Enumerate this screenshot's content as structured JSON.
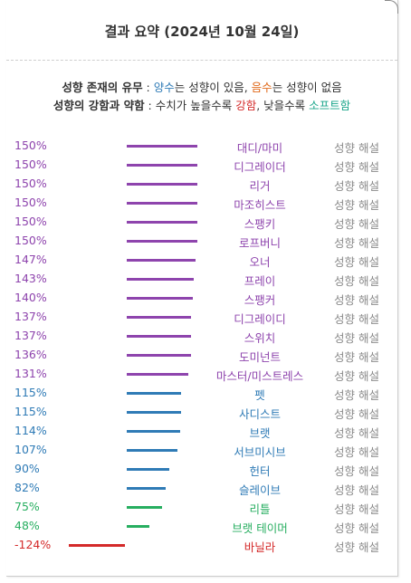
{
  "title": "결과 요약 (2024년 10월 24일)",
  "legend": {
    "line1": {
      "head": "성향 존재의 유무",
      "sep": " : ",
      "positive": "양수",
      "mid": "는 성향이 있음, ",
      "negative": "음수",
      "tail": "는 성향이 없음"
    },
    "line2": {
      "head": "성향의 강함과 약함",
      "sep": " : 수치가 높을수록 ",
      "strong": "강함",
      "mid": ", 낮을수록 ",
      "soft": "소프트함"
    }
  },
  "colors": {
    "purple": "#8e44ad",
    "blue": "#2f7bb6",
    "green": "#27ae60",
    "red": "#d42a2a",
    "orange": "#e0691a",
    "teal": "#1aa58a",
    "link": "#8a8a8a"
  },
  "link_label": "성향 해설",
  "rows": [
    {
      "pct": "150%",
      "value": 150,
      "label": "대디/마미",
      "color": "purple"
    },
    {
      "pct": "150%",
      "value": 150,
      "label": "디그레이더",
      "color": "purple"
    },
    {
      "pct": "150%",
      "value": 150,
      "label": "리거",
      "color": "purple"
    },
    {
      "pct": "150%",
      "value": 150,
      "label": "마조히스트",
      "color": "purple"
    },
    {
      "pct": "150%",
      "value": 150,
      "label": "스팽키",
      "color": "purple"
    },
    {
      "pct": "150%",
      "value": 150,
      "label": "로프버니",
      "color": "purple"
    },
    {
      "pct": "147%",
      "value": 147,
      "label": "오너",
      "color": "purple"
    },
    {
      "pct": "143%",
      "value": 143,
      "label": "프레이",
      "color": "purple"
    },
    {
      "pct": "140%",
      "value": 140,
      "label": "스팽커",
      "color": "purple"
    },
    {
      "pct": "137%",
      "value": 137,
      "label": "디그레이디",
      "color": "purple"
    },
    {
      "pct": "137%",
      "value": 137,
      "label": "스위치",
      "color": "purple"
    },
    {
      "pct": "136%",
      "value": 136,
      "label": "도미넌트",
      "color": "purple"
    },
    {
      "pct": "131%",
      "value": 131,
      "label": "마스터/미스트레스",
      "color": "purple"
    },
    {
      "pct": "115%",
      "value": 115,
      "label": "펫",
      "color": "blue"
    },
    {
      "pct": "115%",
      "value": 115,
      "label": "사디스트",
      "color": "blue"
    },
    {
      "pct": "114%",
      "value": 114,
      "label": "브랫",
      "color": "blue"
    },
    {
      "pct": "107%",
      "value": 107,
      "label": "서브미시브",
      "color": "blue"
    },
    {
      "pct": "90%",
      "value": 90,
      "label": "헌터",
      "color": "blue"
    },
    {
      "pct": "82%",
      "value": 82,
      "label": "슬레이브",
      "color": "blue"
    },
    {
      "pct": "75%",
      "value": 75,
      "label": "리틀",
      "color": "green"
    },
    {
      "pct": "48%",
      "value": 48,
      "label": "브랫 테이머",
      "color": "green"
    },
    {
      "pct": "-124%",
      "value": -124,
      "label": "바닐라",
      "color": "red"
    }
  ]
}
